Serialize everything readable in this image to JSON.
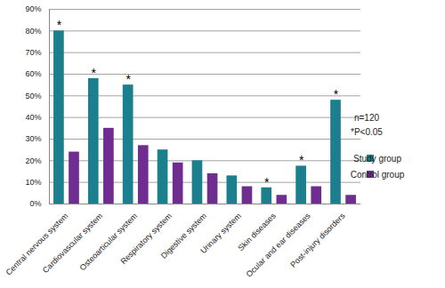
{
  "chart_data": {
    "type": "bar",
    "categories": [
      "Central nervous system",
      "Cardiovascular system",
      "Osteoarticular system",
      "Respiratory system",
      "Digestive system",
      "Urinary system",
      "Skin diseases",
      "Ocular and ear diseases",
      "Post-injury disorders"
    ],
    "series": [
      {
        "name": "Study group",
        "color": "#1b7f8e",
        "values": [
          80,
          58,
          55,
          25,
          20,
          13,
          7.5,
          17.5,
          48
        ]
      },
      {
        "name": "Control group",
        "color": "#6f2d91",
        "values": [
          24,
          35,
          27,
          19,
          14,
          8,
          4,
          8,
          4
        ]
      }
    ],
    "ylim": [
      0,
      90
    ],
    "yticks": [
      {
        "value": 0,
        "label": "0%"
      },
      {
        "value": 10,
        "label": "10%"
      },
      {
        "value": 20,
        "label": "20%"
      },
      {
        "value": 30,
        "label": "30%"
      },
      {
        "value": 40,
        "label": "40%"
      },
      {
        "value": 50,
        "label": "50%"
      },
      {
        "value": 60,
        "label": "60%"
      },
      {
        "value": 70,
        "label": "70%"
      },
      {
        "value": 80,
        "label": "80%"
      },
      {
        "value": 90,
        "label": "90%"
      }
    ],
    "grid": true,
    "legend": "right",
    "annotations": {
      "texts": [
        "n=120",
        "*P<0.05"
      ],
      "marks": [
        {
          "category": "Central nervous system",
          "series": "Study group",
          "text": "*"
        },
        {
          "category": "Cardiovascular system",
          "series": "Study group",
          "text": "*"
        },
        {
          "category": "Osteoarticular system",
          "series": "Study group",
          "text": "*"
        },
        {
          "category": "Skin diseases",
          "series": "Study group",
          "text": "*"
        },
        {
          "category": "Ocular and ear diseases",
          "series": "Study group",
          "text": "*"
        },
        {
          "category": "Post-injury disorders",
          "series": "Study group",
          "text": "*"
        }
      ]
    }
  }
}
